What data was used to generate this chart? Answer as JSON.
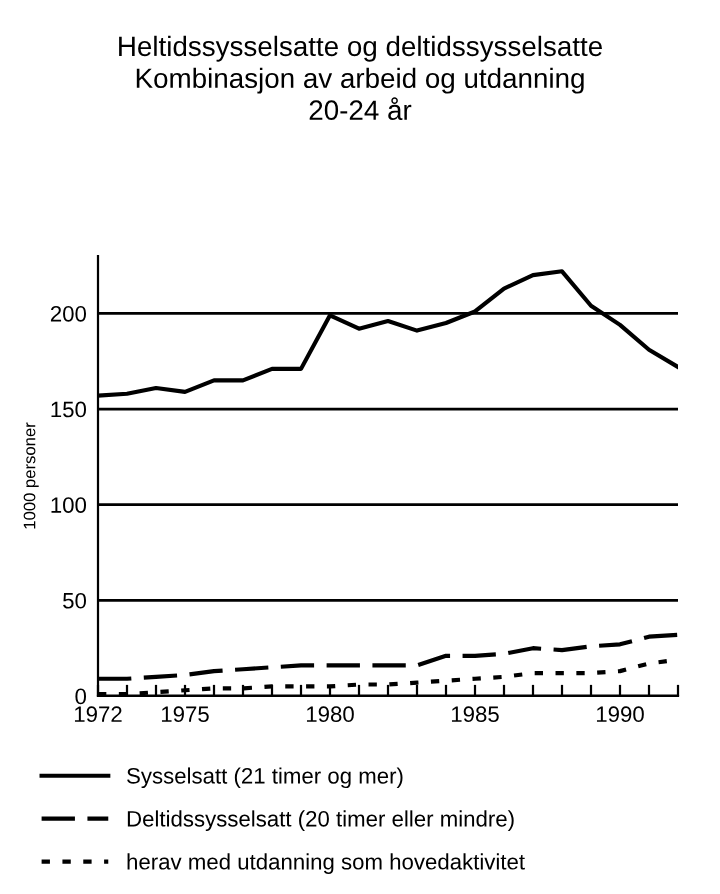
{
  "chart_data": {
    "type": "line",
    "title": "Heltidssysselsatte og deltidssysselsatte\nKombinasjon av arbeid og utdanning\n20-24 år",
    "ylabel": "1000 personer",
    "x": [
      1972,
      1973,
      1974,
      1975,
      1976,
      1977,
      1978,
      1979,
      1980,
      1981,
      1982,
      1983,
      1984,
      1985,
      1986,
      1987,
      1988,
      1989,
      1990,
      1991,
      1992
    ],
    "series": [
      {
        "name": "Sysselsatt (21 timer og mer)",
        "color": "#000000",
        "line_style": "solid",
        "values": [
          157,
          158,
          161,
          159,
          165,
          165,
          171,
          171,
          199,
          192,
          196,
          191,
          195,
          201,
          213,
          220,
          222,
          204,
          194,
          181,
          172
        ]
      },
      {
        "name": "Deltidssysselsatt (20 timer eller mindre)",
        "color": "#000000",
        "line_style": "dashed",
        "values": [
          9,
          9,
          10,
          11,
          13,
          14,
          15,
          16,
          16,
          16,
          16,
          16,
          21,
          21,
          22,
          25,
          24,
          26,
          27,
          31,
          32
        ]
      },
      {
        "name": "herav med utdanning som hovedaktivitet",
        "color": "#000000",
        "line_style": "dotted",
        "values": [
          1,
          1,
          2,
          3,
          4,
          4,
          5,
          5,
          5,
          6,
          6,
          7,
          8,
          9,
          10,
          12,
          12,
          12,
          13,
          17,
          19
        ]
      }
    ],
    "xlim": [
      1972,
      1992
    ],
    "xticks": [
      1972,
      {
        "value": 1973,
        "label": null
      },
      {
        "value": 1974,
        "label": null
      },
      1975,
      {
        "value": 1976,
        "label": null
      },
      {
        "value": 1977,
        "label": null
      },
      {
        "value": 1978,
        "label": null
      },
      {
        "value": 1979,
        "label": null
      },
      1980,
      {
        "value": 1981,
        "label": null
      },
      {
        "value": 1982,
        "label": null
      },
      {
        "value": 1983,
        "label": null
      },
      {
        "value": 1984,
        "label": null
      },
      1985,
      {
        "value": 1986,
        "label": null
      },
      {
        "value": 1987,
        "label": null
      },
      {
        "value": 1988,
        "label": null
      },
      {
        "value": 1989,
        "label": null
      },
      1990,
      {
        "value": 1991,
        "label": null
      },
      {
        "value": 1992,
        "label": null
      }
    ],
    "ylim": [
      0,
      230
    ],
    "yticks": [
      0,
      50,
      100,
      150,
      200
    ],
    "grid": "y",
    "legend": "bottom"
  }
}
